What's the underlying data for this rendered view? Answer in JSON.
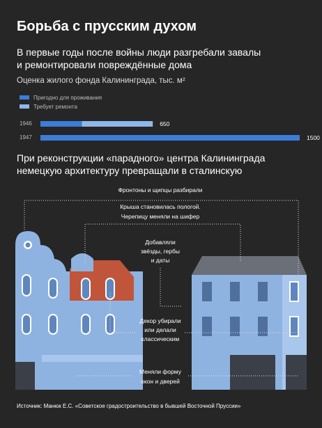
{
  "header": {
    "title": "Борьба с прусским духом",
    "subtitle": [
      "В первые годы после войны люди разгребали завалы",
      "и ремонтировали повреждённые дома"
    ]
  },
  "chart_data": {
    "type": "bar",
    "orientation": "horizontal",
    "stacked": true,
    "title": "Оценка жилого фонда Калининграда, тыс. м²",
    "categories": [
      "1946",
      "1947"
    ],
    "series": [
      {
        "name": "Пригодно для проживания",
        "color": "#3b7dd8",
        "values": [
          240,
          1500
        ]
      },
      {
        "name": "Требует ремонта",
        "color": "#8fb8e8",
        "values": [
          410,
          0
        ]
      }
    ],
    "totals": [
      650,
      1500
    ]
  },
  "section": {
    "title": [
      "При реконструкции «парадного» центра Калининграда",
      "немецкую архитектуру превращали в сталинскую"
    ]
  },
  "annotations": [
    [
      "Фронтоны и щипцы разбирали"
    ],
    [
      "Крыша становилась пологой.",
      "Черепицу меняли на шифер"
    ],
    [
      "Добавляли",
      "звёзды, гербы",
      "и даты"
    ],
    [
      "Декор убирали",
      "или делали",
      "классическим"
    ],
    [
      "Меняли форму",
      "окон и дверей"
    ]
  ],
  "source": "Источник: Манюк Е.С. «Советское градостроительство в бывшей Восточной Пруссии»"
}
